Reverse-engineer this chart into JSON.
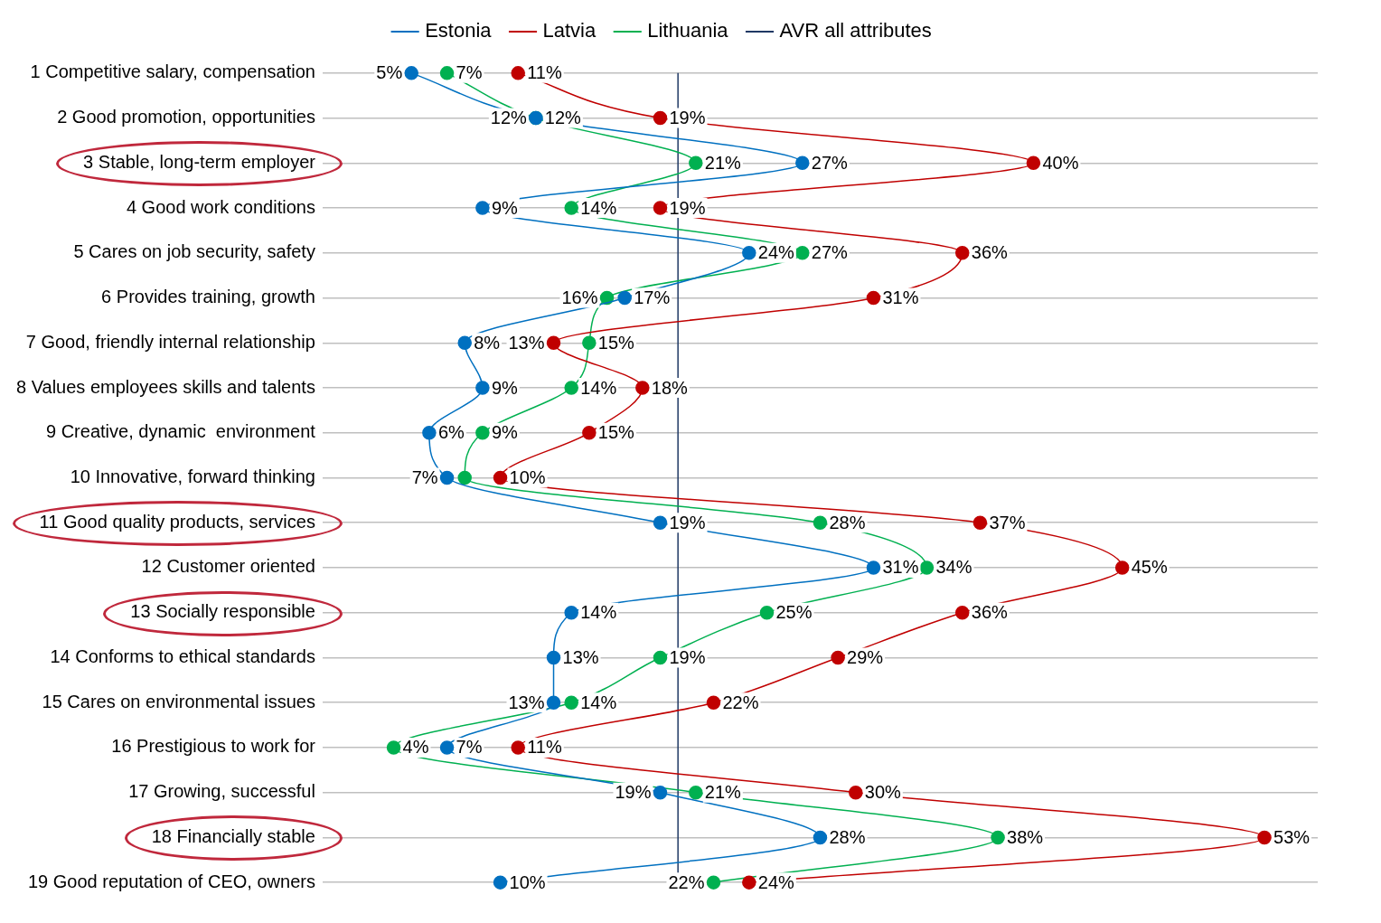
{
  "chart_data": {
    "type": "line",
    "orientation": "horizontal",
    "categories": [
      "1 Competitive salary, compensation",
      "2 Good promotion, opportunities",
      "3 Stable, long-term employer",
      "4 Good work conditions",
      "5 Cares on job security, safety",
      "6 Provides training, growth",
      "7 Good, friendly internal relationship",
      "8 Values employees skills and talents",
      "9 Creative, dynamic  environment",
      "10 Innovative, forward thinking",
      "11 Good quality products, services",
      "12 Customer oriented",
      "13 Socially responsible",
      "14 Conforms to ethical standards",
      "15 Cares on environmental issues",
      "16 Prestigious to work for",
      "17 Growing, successful",
      "18 Financially stable",
      "19 Good reputation of CEO, owners"
    ],
    "series": [
      {
        "name": "Estonia",
        "color": "#0070c0",
        "values": [
          5,
          12,
          27,
          9,
          24,
          17,
          8,
          9,
          6,
          7,
          19,
          31,
          14,
          13,
          13,
          7,
          19,
          28,
          10
        ],
        "value_labels": [
          "5%",
          "12%",
          "27%",
          "9%",
          "24%",
          "17%",
          "8%",
          "9%",
          "6%",
          "7%",
          "19%",
          "31%",
          "14%",
          "13%",
          "13%",
          "7%",
          "19%",
          "28%",
          "10%"
        ]
      },
      {
        "name": "Latvia",
        "color": "#c00000",
        "values": [
          11,
          19,
          40,
          19,
          36,
          31,
          13,
          18,
          15,
          10,
          37,
          45,
          36,
          29,
          22,
          11,
          30,
          53,
          24
        ],
        "value_labels": [
          "11%",
          "19%",
          "40%",
          "19%",
          "36%",
          "31%",
          "13%",
          "18%",
          "15%",
          "10%",
          "37%",
          "45%",
          "36%",
          "29%",
          "22%",
          "11%",
          "30%",
          "53%",
          "24%"
        ]
      },
      {
        "name": "Lithuania",
        "color": "#00b050",
        "values": [
          7,
          12,
          21,
          14,
          27,
          16,
          15,
          14,
          9,
          8,
          28,
          34,
          25,
          19,
          14,
          4,
          21,
          38,
          22
        ],
        "value_labels": [
          "7%",
          "12%",
          "21%",
          "14%",
          "27%",
          "16%",
          "15%",
          "14%",
          "9%",
          null,
          "28%",
          "34%",
          "25%",
          "19%",
          "14%",
          "4%",
          "21%",
          "38%",
          "22%"
        ]
      }
    ],
    "ref_lines": [
      {
        "axis": "x",
        "value": 20,
        "label": "AVR all attributes",
        "color": "#1f3864"
      }
    ],
    "xlim": [
      0,
      56
    ],
    "tick_labels": "y",
    "grid": "y",
    "legend": "top",
    "marker": "circle"
  }
}
